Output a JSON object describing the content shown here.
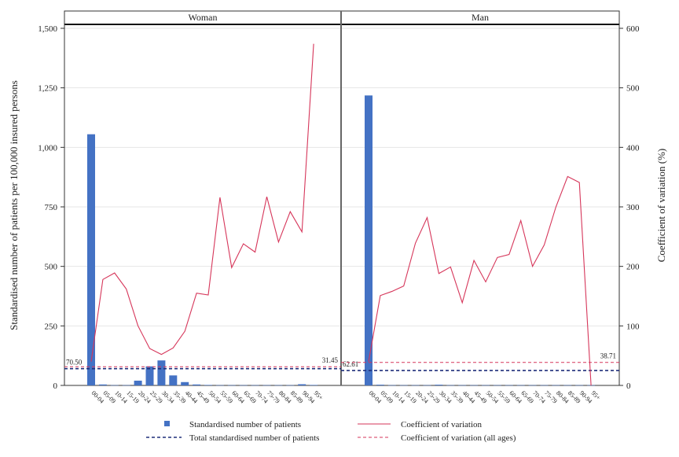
{
  "chart_data": {
    "type": "bar",
    "panels": [
      {
        "title": "Woman",
        "categories": [
          "00-04",
          "05-09",
          "10-14",
          "15-19",
          "20-24",
          "25-29",
          "30-34",
          "35-39",
          "40-44",
          "45-49",
          "50-54",
          "55-59",
          "60-64",
          "65-69",
          "70-74",
          "75-79",
          "80-84",
          "85-89",
          "90-94",
          "95+"
        ],
        "bars": [
          1055,
          4,
          1,
          1,
          20,
          80,
          105,
          42,
          14,
          4,
          2,
          1,
          1,
          1,
          1,
          1,
          1,
          1,
          5,
          2
        ],
        "cv": [
          40,
          178,
          189,
          162,
          100,
          62,
          52,
          63,
          91,
          155,
          152,
          316,
          198,
          238,
          224,
          317,
          241,
          292,
          258,
          574
        ],
        "total_patients": 70.5,
        "total_patients_label": "70.50",
        "cv_all_ages": 31.45,
        "cv_all_ages_label": "31.45"
      },
      {
        "title": "Man",
        "categories": [
          "00-04",
          "05-09",
          "10-14",
          "15-19",
          "20-24",
          "25-29",
          "30-34",
          "35-39",
          "40-44",
          "45-49",
          "50-54",
          "55-59",
          "60-64",
          "65-69",
          "70-74",
          "75-79",
          "80-84",
          "85-89",
          "90-94",
          "95+"
        ],
        "bars": [
          1218,
          3,
          1,
          1,
          1,
          1,
          3,
          1,
          1,
          1,
          1,
          1,
          1,
          1,
          1,
          1,
          1,
          1,
          1,
          1
        ],
        "cv": [
          40,
          151,
          158,
          167,
          239,
          282,
          188,
          199,
          139,
          210,
          174,
          215,
          220,
          277,
          200,
          236,
          300,
          351,
          341,
          0
        ],
        "total_patients": 62.61,
        "total_patients_label": "62.61",
        "cv_all_ages": 38.71,
        "cv_all_ages_label": "38.71"
      }
    ],
    "y_left": {
      "label": "Standardised number of patients per 100,000 insured persons",
      "lim": [
        0,
        1500
      ],
      "ticks": [
        "0",
        "250",
        "500",
        "750",
        "1,000",
        "1,250",
        "1,500"
      ]
    },
    "y_right": {
      "label": "Coefficient of variation (%)",
      "lim": [
        0,
        600
      ],
      "ticks": [
        "0",
        "100",
        "200",
        "300",
        "400",
        "500",
        "600"
      ]
    },
    "grid": true,
    "legend": {
      "position": "bottom",
      "items": [
        {
          "label": "Standardised number of patients",
          "kind": "bar"
        },
        {
          "label": "Coefficient of variation",
          "kind": "line"
        },
        {
          "label": "Total standardised number of patients",
          "kind": "dash-navy"
        },
        {
          "label": "Coefficient of variation (all ages)",
          "kind": "dash-red"
        }
      ]
    },
    "colors": {
      "bar": "#4472c4",
      "cv_line": "#d6365a",
      "total_line": "#1f2f7a",
      "cv_all_line": "#d6365a"
    }
  }
}
